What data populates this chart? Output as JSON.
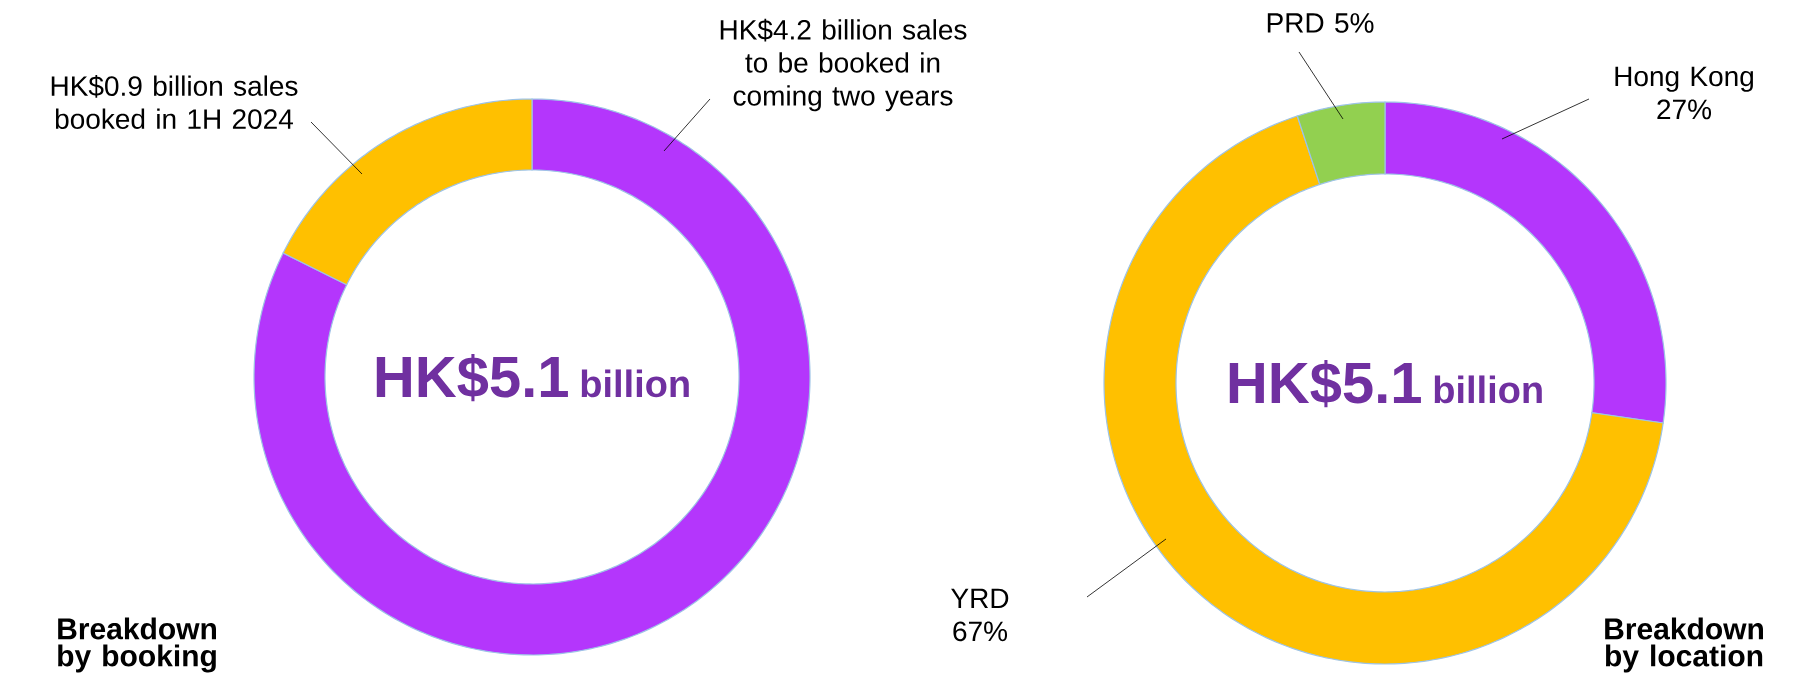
{
  "chart_data": [
    {
      "type": "donut",
      "title": "Breakdown by booking",
      "categories": [
        "HK$4.2 billion sales to be booked in coming two years",
        "HK$0.9 billion sales booked in 1H 2024"
      ],
      "values": [
        4.2,
        0.9
      ],
      "colors": [
        "#b436fc",
        "#ffc000"
      ],
      "annotations": [
        "HK$5.1",
        "billion"
      ]
    },
    {
      "type": "donut",
      "title": "Breakdown by location",
      "categories": [
        "Hong Kong",
        "YRD",
        "PRD"
      ],
      "values": [
        27,
        67,
        5
      ],
      "value_labels": [
        "27%",
        "67%",
        "5%"
      ],
      "colors": [
        "#b436fc",
        "#ffc000",
        "#92d050"
      ],
      "annotations": [
        "HK$5.1",
        "billion"
      ]
    }
  ]
}
